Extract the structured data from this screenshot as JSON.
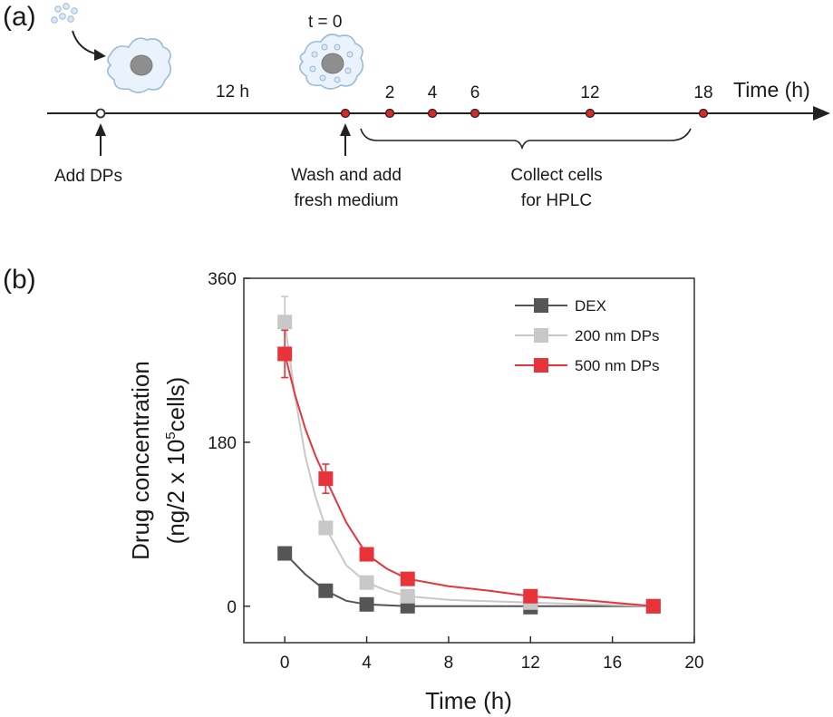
{
  "panel_a": {
    "label": "(a)",
    "t0_label": "t = 0",
    "interval_label": "12 h",
    "timeline_axis_label": "Time (h)",
    "collect_ticks": [
      "2",
      "4",
      "6",
      "12",
      "18"
    ],
    "add_label": "Add DPs",
    "wash_label_1": "Wash and add",
    "wash_label_2": "fresh medium",
    "collect_label_1": "Collect cells",
    "collect_label_2": "for HPLC",
    "marker_color": "#d42a2a"
  },
  "panel_b": {
    "label": "(b)"
  },
  "chart_data": {
    "type": "line",
    "xlabel": "Time (h)",
    "ylabel_line1": "Drug concentration",
    "ylabel_line2_pre": "(ng/2 x 10",
    "ylabel_sup": "5",
    "ylabel_line2_post": "cells)",
    "xlim": [
      -2,
      20
    ],
    "ylim": [
      -40,
      360
    ],
    "xticks": [
      0,
      4,
      8,
      12,
      16,
      20
    ],
    "yticks": [
      0,
      180,
      360
    ],
    "legend_position": "top-right",
    "series": [
      {
        "name": "DEX",
        "color": "#555555",
        "x": [
          0,
          2,
          4,
          6,
          12,
          18
        ],
        "y": [
          58,
          17,
          2,
          0,
          -1,
          0
        ],
        "err": [
          0,
          0,
          0,
          0,
          0,
          0
        ],
        "fit": [
          [
            0,
            58
          ],
          [
            1,
            35
          ],
          [
            2,
            17
          ],
          [
            3,
            6
          ],
          [
            4,
            2
          ],
          [
            6,
            0
          ],
          [
            12,
            0
          ],
          [
            18,
            0
          ]
        ]
      },
      {
        "name": "200 nm DPs",
        "color": "#c8c8c8",
        "x": [
          0,
          2,
          4,
          6,
          12,
          18
        ],
        "y": [
          312,
          86,
          26,
          11,
          4,
          0
        ],
        "err": [
          28,
          0,
          0,
          0,
          0,
          0
        ],
        "fit": [
          [
            0,
            312
          ],
          [
            0.5,
            230
          ],
          [
            1,
            165
          ],
          [
            1.5,
            120
          ],
          [
            2,
            86
          ],
          [
            3,
            45
          ],
          [
            4,
            26
          ],
          [
            5,
            17
          ],
          [
            6,
            11
          ],
          [
            8,
            7
          ],
          [
            12,
            4
          ],
          [
            18,
            0
          ]
        ]
      },
      {
        "name": "500 nm DPs",
        "color": "#e8333b",
        "x": [
          0,
          2,
          4,
          6,
          12,
          18
        ],
        "y": [
          277,
          140,
          57,
          30,
          11,
          0
        ],
        "err": [
          26,
          16,
          6,
          0,
          0,
          0
        ],
        "fit": [
          [
            0,
            277
          ],
          [
            0.5,
            232
          ],
          [
            1,
            195
          ],
          [
            1.5,
            165
          ],
          [
            2,
            140
          ],
          [
            3,
            92
          ],
          [
            4,
            57
          ],
          [
            5,
            41
          ],
          [
            6,
            30
          ],
          [
            8,
            22
          ],
          [
            10,
            17
          ],
          [
            12,
            11
          ],
          [
            15,
            6
          ],
          [
            18,
            0
          ]
        ]
      }
    ]
  }
}
